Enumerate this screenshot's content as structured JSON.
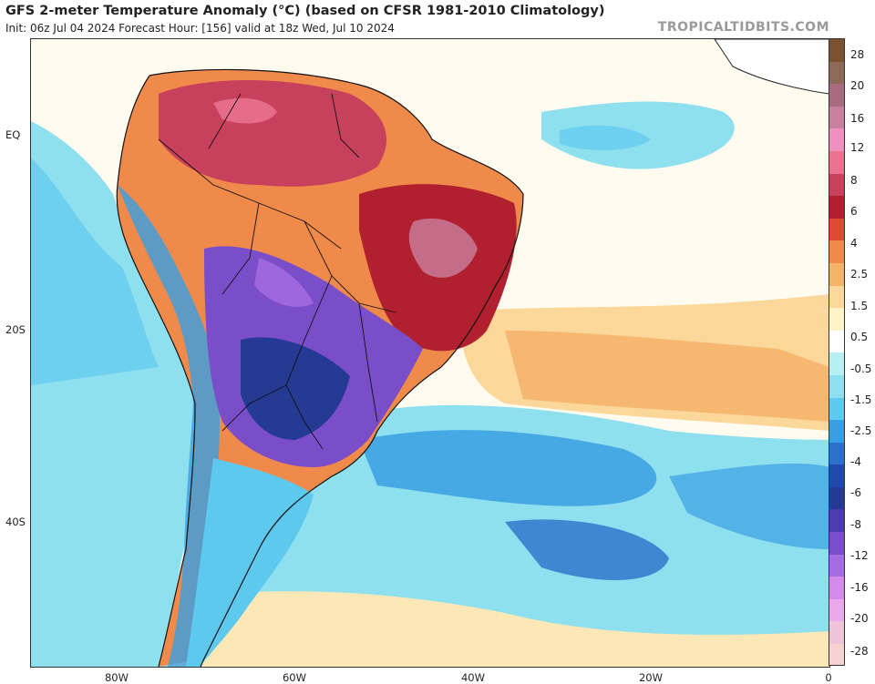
{
  "header": {
    "title": "GFS 2-meter Temperature Anomaly (°C) (based on CFSR 1981-2010 Climatology)",
    "subtitle": "Init: 06z Jul 04 2024   Forecast Hour: [156]   valid at 18z Wed, Jul 10 2024",
    "brand": "TROPICALTIDBITS.COM"
  },
  "axes": {
    "lat_labels": [
      "EQ",
      "20S",
      "40S"
    ],
    "lon_labels": [
      "80W",
      "60W",
      "40W",
      "20W",
      "0"
    ]
  },
  "colorbar": {
    "labels": [
      "28",
      "20",
      "16",
      "12",
      "8",
      "6",
      "4",
      "2.5",
      "1.5",
      "0.5",
      "-0.5",
      "-1.5",
      "-2.5",
      "-4",
      "-6",
      "-8",
      "-12",
      "-16",
      "-20",
      "-28"
    ],
    "colors": [
      "#7a5230",
      "#8d6a57",
      "#a86b7f",
      "#c9809f",
      "#ee8fc0",
      "#e9728f",
      "#c7405c",
      "#b0202f",
      "#e04a33",
      "#f08a4a",
      "#f5b269",
      "#fbd79a",
      "#fff3c8",
      "#ffffff",
      "#b6f0f2",
      "#8fe0ee",
      "#5ec9ee",
      "#3a9fe2",
      "#2b71c9",
      "#1f4aa8",
      "#243a93",
      "#4b3dae",
      "#7b4ec9",
      "#a46ce0",
      "#d38ae8",
      "#e9a9ea",
      "#efc3d8",
      "#f6d2d0"
    ]
  }
}
